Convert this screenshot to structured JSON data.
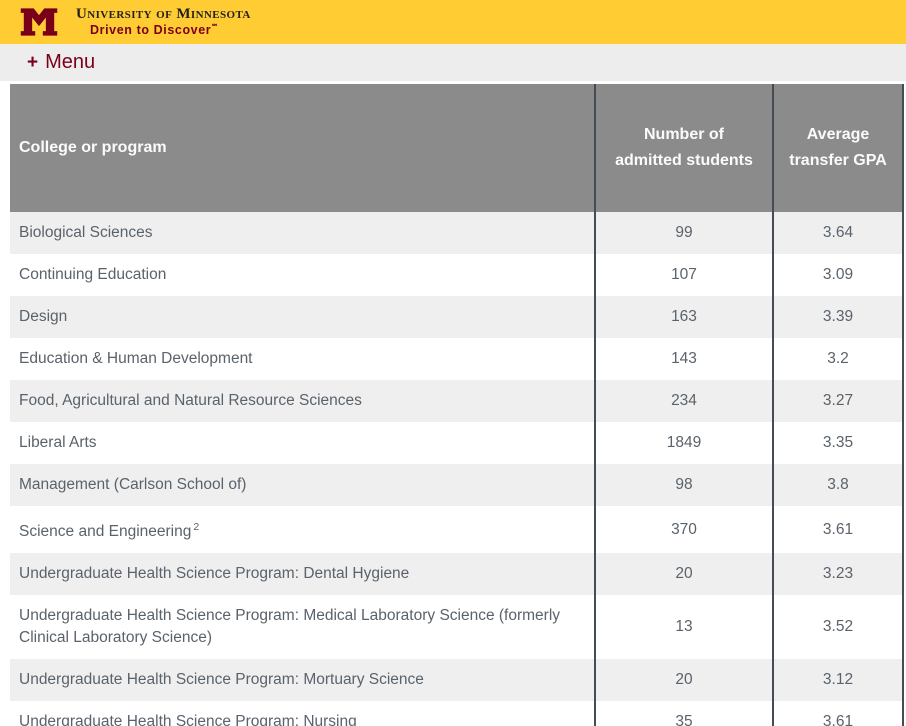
{
  "banner": {
    "university": "University of Minnesota",
    "tagline": "Driven to Discover",
    "tagline_mark": "℠",
    "colors": {
      "gold": "#FFCC33",
      "maroon": "#7A0019"
    }
  },
  "menu": {
    "plus": "+",
    "label": "Menu"
  },
  "table": {
    "headers": [
      "College or program",
      "Number of admitted students",
      "Average transfer GPA"
    ],
    "rows": [
      {
        "program": "Biological Sciences",
        "admitted": "99",
        "gpa": "3.64"
      },
      {
        "program": "Continuing Education",
        "admitted": "107",
        "gpa": "3.09"
      },
      {
        "program": "Design",
        "admitted": "163",
        "gpa": "3.39"
      },
      {
        "program": "Education & Human Development",
        "admitted": "143",
        "gpa": "3.2"
      },
      {
        "program": "Food, Agricultural and Natural Resource Sciences",
        "admitted": "234",
        "gpa": "3.27"
      },
      {
        "program": "Liberal Arts",
        "admitted": "1849",
        "gpa": "3.35"
      },
      {
        "program": "Management (Carlson School of)",
        "admitted": "98",
        "gpa": "3.8"
      },
      {
        "program": "Science and Engineering",
        "footnote": "2",
        "admitted": "370",
        "gpa": "3.61"
      },
      {
        "program": "Undergraduate Health Science Program: Dental Hygiene",
        "admitted": "20",
        "gpa": "3.23"
      },
      {
        "program": "Undergraduate Health Science Program: Medical Laboratory Science (formerly Clinical Laboratory Science)",
        "admitted": "13",
        "gpa": "3.52"
      },
      {
        "program": "Undergraduate Health Science Program: Mortuary Science",
        "admitted": "20",
        "gpa": "3.12"
      },
      {
        "program": "Undergraduate Health Science Program: Nursing",
        "admitted": "35",
        "gpa": "3.61"
      }
    ]
  }
}
